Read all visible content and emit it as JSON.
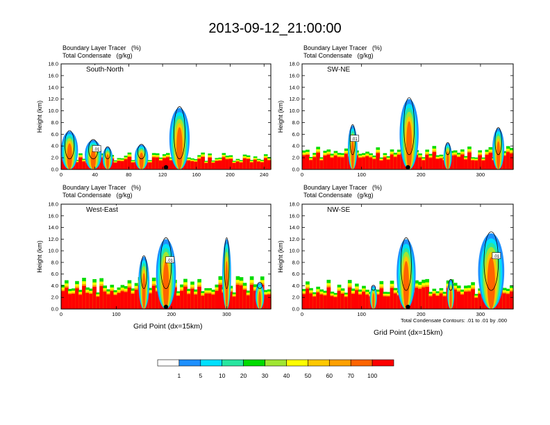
{
  "figure_title": "2013-09-12_21:00:00",
  "bottom_note": "Total Condensate Contours: .01 to .01 by .000",
  "colors": {
    "levels": [
      "#ffffff",
      "#1e90ff",
      "#00e0ff",
      "#28e6a0",
      "#00dc00",
      "#a0e632",
      "#ffff00",
      "#ffc800",
      "#ffa000",
      "#ff6400",
      "#ff0000"
    ],
    "contour": "#000000",
    "station_marker": "#000000"
  },
  "chart_data": [
    {
      "type": "heatmap",
      "subtitle_line1": "Boundary Layer Tracer   (%)",
      "subtitle_line2": "Total Condensate   (g/kg)",
      "panel_label": "South-North",
      "ylabel": "Height (km)",
      "xlabel": "",
      "xlim": [
        0,
        248
      ],
      "ylim": [
        0,
        18
      ],
      "x_ticks": [
        0,
        40,
        80,
        120,
        160,
        200,
        240
      ],
      "y_ticks": [
        "0.0",
        "2.0",
        "4.0",
        "6.0",
        "8.0",
        "10.0",
        "12.0",
        "14.0",
        "16.0",
        "18.0"
      ],
      "contour_label": ".01",
      "station_x": 124,
      "boundary_layer_top_km": 1.8
    },
    {
      "type": "heatmap",
      "subtitle_line1": "Boundary Layer Tracer   (%)",
      "subtitle_line2": "Total Condensate   (g/kg)",
      "panel_label": "SW-NE",
      "ylabel": "Height (km)",
      "xlabel": "",
      "xlim": [
        0,
        355
      ],
      "ylim": [
        0,
        18
      ],
      "x_ticks": [
        0,
        100,
        200,
        300
      ],
      "y_ticks": [
        "0.0",
        "2.0",
        "4.0",
        "6.0",
        "8.0",
        "10.0",
        "12.0",
        "14.0",
        "16.0",
        "18.0"
      ],
      "contour_label": ".01",
      "station_x": 178,
      "boundary_layer_top_km": 2.5
    },
    {
      "type": "heatmap",
      "subtitle_line1": "Boundary Layer Tracer   (%)",
      "subtitle_line2": "Total Condensate   (g/kg)",
      "panel_label": "West-East",
      "ylabel": "Height (km)",
      "xlabel": "Grid Point (dx=15km)",
      "xlim": [
        0,
        380
      ],
      "ylim": [
        0,
        18
      ],
      "x_ticks": [
        0,
        100,
        200,
        300
      ],
      "y_ticks": [
        "0.0",
        "2.0",
        "4.0",
        "6.0",
        "8.0",
        "10.0",
        "12.0",
        "14.0",
        "16.0",
        "18.0"
      ],
      "contour_label": ".01",
      "station_x": 190,
      "boundary_layer_top_km": 3.5
    },
    {
      "type": "heatmap",
      "subtitle_line1": "Boundary Layer Tracer   (%)",
      "subtitle_line2": "Total Condensate   (g/kg)",
      "panel_label": "NW-SE",
      "ylabel": "Height (km)",
      "xlabel": "Grid Point (dx=15km)",
      "xlim": [
        0,
        355
      ],
      "ylim": [
        0,
        18
      ],
      "x_ticks": [
        0,
        100,
        200,
        300
      ],
      "y_ticks": [
        "0.0",
        "2.0",
        "4.0",
        "6.0",
        "8.0",
        "10.0",
        "12.0",
        "14.0",
        "16.0",
        "18.0"
      ],
      "contour_label": ".01",
      "station_x": 178,
      "boundary_layer_top_km": 3.2
    }
  ],
  "colorbar": {
    "labels": [
      "1",
      "5",
      "10",
      "20",
      "30",
      "40",
      "50",
      "60",
      "70",
      "100"
    ]
  }
}
